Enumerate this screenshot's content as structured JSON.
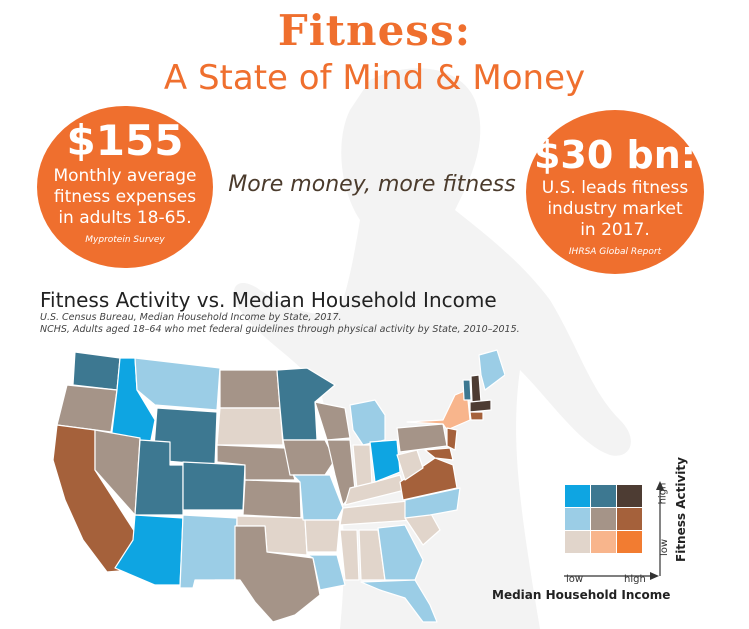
{
  "header": {
    "title": "Fitness:",
    "subtitle": "A State of Mind & Money"
  },
  "stat_left": {
    "value": "$155",
    "line1": "Monthly average",
    "line2": "fitness expenses",
    "line3": "in adults 18-65.",
    "source": "Myprotein Survey"
  },
  "stat_right": {
    "value": "$30 bn:",
    "line1": "U.S. leads fitness",
    "line2": "industry market",
    "line3": "in 2017.",
    "source": "IHRSA Global Report"
  },
  "tagline": "More money, more fitness",
  "map": {
    "title": "Fitness Activity vs. Median Household Income",
    "note1": "U.S. Census Bureau, Median Household Income by State, 2017.",
    "note2": "NCHS,  Adults aged 18–64 who met  federal guidelines through physical activity by State,  2010–2015."
  },
  "legend": {
    "y_label": "Fitness Activity",
    "x_label": "Median Household Income",
    "y_low": "low",
    "y_high": "high",
    "x_low": "low",
    "x_high": "high",
    "colors": {
      "high_low": "#0ea5e2",
      "high_mid": "#3d7891",
      "high_high": "#4d3c33",
      "mid_low": "#9bcde6",
      "mid_mid": "#a59488",
      "mid_high": "#a5613b",
      "low_low": "#e1d5cb",
      "low_mid": "#f8b58c",
      "low_high": "#f27c31"
    }
  }
}
